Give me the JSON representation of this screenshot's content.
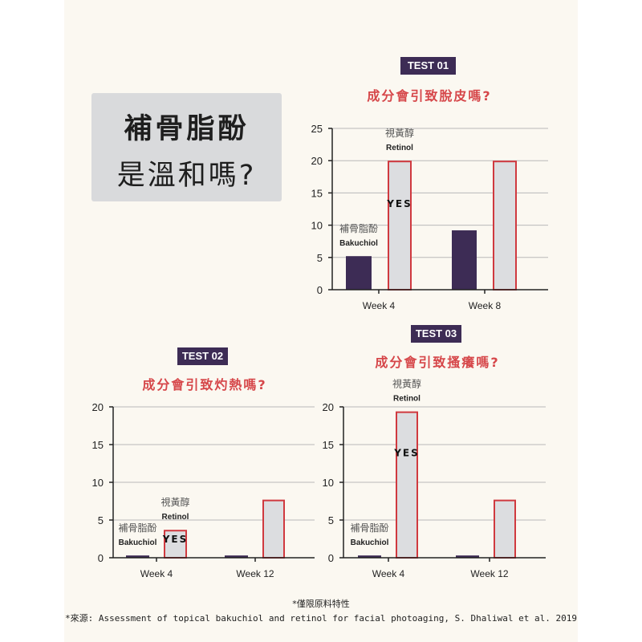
{
  "heading": {
    "line1": "補骨脂酚",
    "line2": "是溫和嗎?"
  },
  "colors": {
    "bakuchiol": "#3d2c55",
    "retinol_fill": "#dcdde0",
    "retinol_border": "#d0393f",
    "question": "#d6474a",
    "background": "#fbf8f1"
  },
  "series_labels": {
    "bakuchiol": {
      "zh": "補骨脂酚",
      "en": "Bakuchiol"
    },
    "retinol": {
      "zh": "視黃醇",
      "en": "Retinol"
    }
  },
  "chart_data": [
    {
      "type": "bar",
      "badge": "TEST 01",
      "title": "成分會引致脫皮嗎?",
      "categories": [
        "Week 4",
        "Week 8"
      ],
      "series": [
        {
          "name": "Bakuchiol",
          "values": [
            5.2,
            9.2
          ]
        },
        {
          "name": "Retinol",
          "values": [
            20,
            20
          ]
        }
      ],
      "yticks": [
        0,
        5,
        10,
        15,
        20,
        25
      ],
      "ylim": [
        0,
        25
      ],
      "grid": true,
      "annotation": "YES"
    },
    {
      "type": "bar",
      "badge": "TEST 02",
      "title": "成分會引致灼熱嗎?",
      "categories": [
        "Week 4",
        "Week 12"
      ],
      "series": [
        {
          "name": "Bakuchiol",
          "values": [
            0.3,
            0.3
          ]
        },
        {
          "name": "Retinol",
          "values": [
            3.7,
            7.7
          ]
        }
      ],
      "yticks": [
        0,
        5,
        10,
        15,
        20
      ],
      "ylim": [
        0,
        20
      ],
      "grid": true,
      "annotation": "YES"
    },
    {
      "type": "bar",
      "badge": "TEST 03",
      "title": "成分會引致搔癢嗎?",
      "categories": [
        "Week 4",
        "Week 12"
      ],
      "series": [
        {
          "name": "Bakuchiol",
          "values": [
            0.3,
            0.3
          ]
        },
        {
          "name": "Retinol",
          "values": [
            19.4,
            7.7
          ]
        }
      ],
      "yticks": [
        0,
        5,
        10,
        15,
        20
      ],
      "ylim": [
        0,
        20
      ],
      "grid": true,
      "annotation": "YES"
    }
  ],
  "footer": {
    "note": "*僅限原料特性",
    "source": "*來源: Assessment of topical bakuchiol and retinol for facial photoaging, S. Dhaliwal et al. 2019"
  }
}
